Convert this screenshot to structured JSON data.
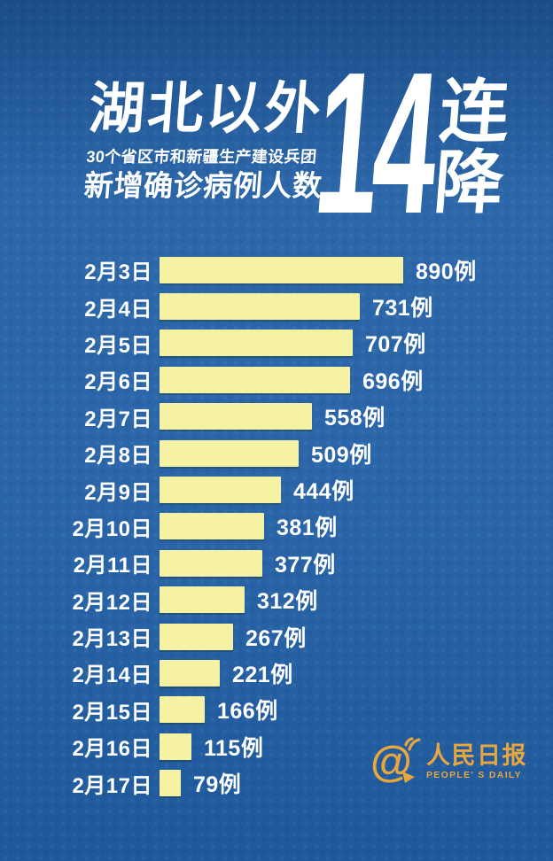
{
  "colors": {
    "background": "#215FA5",
    "bar": "#F6F2A3",
    "text": "#FFFFFF",
    "logo_gold": "#E8A63E"
  },
  "title": {
    "main": "湖北以外",
    "subtitle": "30个省区市和新疆生产建设兵团",
    "subtitle2": "新增确诊病例人数",
    "big_number": "14",
    "suffix_top": "连",
    "suffix_bottom": "降"
  },
  "chart_data": {
    "type": "bar",
    "orientation": "horizontal",
    "title": "湖北以外30个省区市和新疆生产建设兵团新增确诊病例人数14连降",
    "unit": "例",
    "categories": [
      "2月3日",
      "2月4日",
      "2月5日",
      "2月6日",
      "2月7日",
      "2月8日",
      "2月9日",
      "2月10日",
      "2月11日",
      "2月12日",
      "2月13日",
      "2月14日",
      "2月15日",
      "2月16日",
      "2月17日"
    ],
    "values": [
      890,
      731,
      707,
      696,
      558,
      509,
      444,
      381,
      377,
      312,
      267,
      221,
      166,
      115,
      79
    ],
    "value_labels": [
      "890例",
      "731例",
      "707例",
      "696例",
      "558例",
      "509例",
      "444例",
      "381例",
      "377例",
      "312例",
      "267例",
      "221例",
      "166例",
      "115例",
      "79例"
    ],
    "max_value": 890,
    "xlim": [
      0,
      890
    ],
    "bar_color": "#F6F2A3",
    "label_color": "#FFFFFF",
    "grid": false,
    "legend": "none"
  },
  "footer": {
    "logo_cn": "人民日报",
    "logo_en": "PEOPLE' S DAILY"
  }
}
